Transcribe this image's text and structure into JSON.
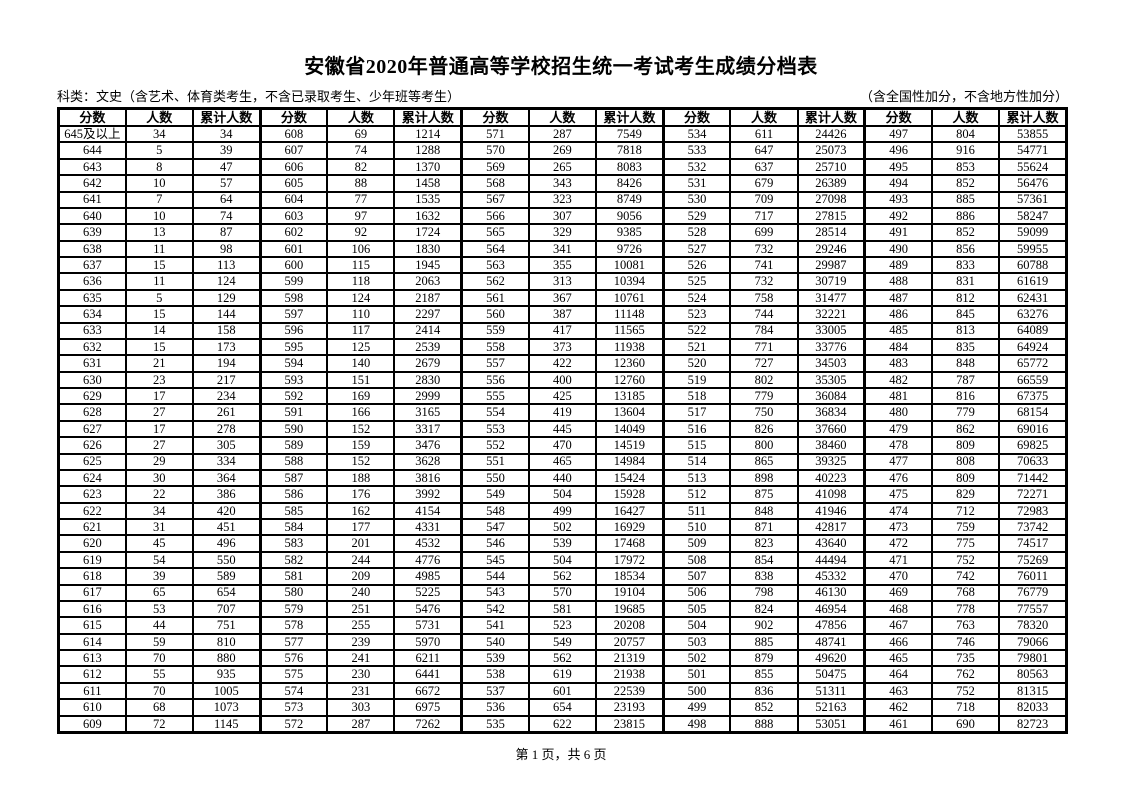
{
  "page": {
    "title": "安徽省2020年普通高等学校招生统一考试考生成绩分档表",
    "subtitle_left": "科类：文史（含艺术、体育类考生，不含已录取考生、少年班等考生）",
    "subtitle_right": "（含全国性加分，不含地方性加分）",
    "footer": "第 1 页，共 6 页"
  },
  "table": {
    "header_labels": [
      "分数",
      "人数",
      "累计人数"
    ],
    "column_kinds": [
      "score",
      "count",
      "cumulative"
    ],
    "groups": [
      {
        "rows": [
          [
            "645及以上",
            34,
            34
          ],
          [
            "644",
            5,
            39
          ],
          [
            "643",
            8,
            47
          ],
          [
            "642",
            10,
            57
          ],
          [
            "641",
            7,
            64
          ],
          [
            "640",
            10,
            74
          ],
          [
            "639",
            13,
            87
          ],
          [
            "638",
            11,
            98
          ],
          [
            "637",
            15,
            113
          ],
          [
            "636",
            11,
            124
          ],
          [
            "635",
            5,
            129
          ],
          [
            "634",
            15,
            144
          ],
          [
            "633",
            14,
            158
          ],
          [
            "632",
            15,
            173
          ],
          [
            "631",
            21,
            194
          ],
          [
            "630",
            23,
            217
          ],
          [
            "629",
            17,
            234
          ],
          [
            "628",
            27,
            261
          ],
          [
            "627",
            17,
            278
          ],
          [
            "626",
            27,
            305
          ],
          [
            "625",
            29,
            334
          ],
          [
            "624",
            30,
            364
          ],
          [
            "623",
            22,
            386
          ],
          [
            "622",
            34,
            420
          ],
          [
            "621",
            31,
            451
          ],
          [
            "620",
            45,
            496
          ],
          [
            "619",
            54,
            550
          ],
          [
            "618",
            39,
            589
          ],
          [
            "617",
            65,
            654
          ],
          [
            "616",
            53,
            707
          ],
          [
            "615",
            44,
            751
          ],
          [
            "614",
            59,
            810
          ],
          [
            "613",
            70,
            880
          ],
          [
            "612",
            55,
            935
          ],
          [
            "611",
            70,
            1005
          ],
          [
            "610",
            68,
            1073
          ],
          [
            "609",
            72,
            1145
          ]
        ]
      },
      {
        "rows": [
          [
            "608",
            69,
            1214
          ],
          [
            "607",
            74,
            1288
          ],
          [
            "606",
            82,
            1370
          ],
          [
            "605",
            88,
            1458
          ],
          [
            "604",
            77,
            1535
          ],
          [
            "603",
            97,
            1632
          ],
          [
            "602",
            92,
            1724
          ],
          [
            "601",
            106,
            1830
          ],
          [
            "600",
            115,
            1945
          ],
          [
            "599",
            118,
            2063
          ],
          [
            "598",
            124,
            2187
          ],
          [
            "597",
            110,
            2297
          ],
          [
            "596",
            117,
            2414
          ],
          [
            "595",
            125,
            2539
          ],
          [
            "594",
            140,
            2679
          ],
          [
            "593",
            151,
            2830
          ],
          [
            "592",
            169,
            2999
          ],
          [
            "591",
            166,
            3165
          ],
          [
            "590",
            152,
            3317
          ],
          [
            "589",
            159,
            3476
          ],
          [
            "588",
            152,
            3628
          ],
          [
            "587",
            188,
            3816
          ],
          [
            "586",
            176,
            3992
          ],
          [
            "585",
            162,
            4154
          ],
          [
            "584",
            177,
            4331
          ],
          [
            "583",
            201,
            4532
          ],
          [
            "582",
            244,
            4776
          ],
          [
            "581",
            209,
            4985
          ],
          [
            "580",
            240,
            5225
          ],
          [
            "579",
            251,
            5476
          ],
          [
            "578",
            255,
            5731
          ],
          [
            "577",
            239,
            5970
          ],
          [
            "576",
            241,
            6211
          ],
          [
            "575",
            230,
            6441
          ],
          [
            "574",
            231,
            6672
          ],
          [
            "573",
            303,
            6975
          ],
          [
            "572",
            287,
            7262
          ]
        ]
      },
      {
        "rows": [
          [
            "571",
            287,
            7549
          ],
          [
            "570",
            269,
            7818
          ],
          [
            "569",
            265,
            8083
          ],
          [
            "568",
            343,
            8426
          ],
          [
            "567",
            323,
            8749
          ],
          [
            "566",
            307,
            9056
          ],
          [
            "565",
            329,
            9385
          ],
          [
            "564",
            341,
            9726
          ],
          [
            "563",
            355,
            10081
          ],
          [
            "562",
            313,
            10394
          ],
          [
            "561",
            367,
            10761
          ],
          [
            "560",
            387,
            11148
          ],
          [
            "559",
            417,
            11565
          ],
          [
            "558",
            373,
            11938
          ],
          [
            "557",
            422,
            12360
          ],
          [
            "556",
            400,
            12760
          ],
          [
            "555",
            425,
            13185
          ],
          [
            "554",
            419,
            13604
          ],
          [
            "553",
            445,
            14049
          ],
          [
            "552",
            470,
            14519
          ],
          [
            "551",
            465,
            14984
          ],
          [
            "550",
            440,
            15424
          ],
          [
            "549",
            504,
            15928
          ],
          [
            "548",
            499,
            16427
          ],
          [
            "547",
            502,
            16929
          ],
          [
            "546",
            539,
            17468
          ],
          [
            "545",
            504,
            17972
          ],
          [
            "544",
            562,
            18534
          ],
          [
            "543",
            570,
            19104
          ],
          [
            "542",
            581,
            19685
          ],
          [
            "541",
            523,
            20208
          ],
          [
            "540",
            549,
            20757
          ],
          [
            "539",
            562,
            21319
          ],
          [
            "538",
            619,
            21938
          ],
          [
            "537",
            601,
            22539
          ],
          [
            "536",
            654,
            23193
          ],
          [
            "535",
            622,
            23815
          ]
        ]
      },
      {
        "rows": [
          [
            "534",
            611,
            24426
          ],
          [
            "533",
            647,
            25073
          ],
          [
            "532",
            637,
            25710
          ],
          [
            "531",
            679,
            26389
          ],
          [
            "530",
            709,
            27098
          ],
          [
            "529",
            717,
            27815
          ],
          [
            "528",
            699,
            28514
          ],
          [
            "527",
            732,
            29246
          ],
          [
            "526",
            741,
            29987
          ],
          [
            "525",
            732,
            30719
          ],
          [
            "524",
            758,
            31477
          ],
          [
            "523",
            744,
            32221
          ],
          [
            "522",
            784,
            33005
          ],
          [
            "521",
            771,
            33776
          ],
          [
            "520",
            727,
            34503
          ],
          [
            "519",
            802,
            35305
          ],
          [
            "518",
            779,
            36084
          ],
          [
            "517",
            750,
            36834
          ],
          [
            "516",
            826,
            37660
          ],
          [
            "515",
            800,
            38460
          ],
          [
            "514",
            865,
            39325
          ],
          [
            "513",
            898,
            40223
          ],
          [
            "512",
            875,
            41098
          ],
          [
            "511",
            848,
            41946
          ],
          [
            "510",
            871,
            42817
          ],
          [
            "509",
            823,
            43640
          ],
          [
            "508",
            854,
            44494
          ],
          [
            "507",
            838,
            45332
          ],
          [
            "506",
            798,
            46130
          ],
          [
            "505",
            824,
            46954
          ],
          [
            "504",
            902,
            47856
          ],
          [
            "503",
            885,
            48741
          ],
          [
            "502",
            879,
            49620
          ],
          [
            "501",
            855,
            50475
          ],
          [
            "500",
            836,
            51311
          ],
          [
            "499",
            852,
            52163
          ],
          [
            "498",
            888,
            53051
          ]
        ]
      },
      {
        "rows": [
          [
            "497",
            804,
            53855
          ],
          [
            "496",
            916,
            54771
          ],
          [
            "495",
            853,
            55624
          ],
          [
            "494",
            852,
            56476
          ],
          [
            "493",
            885,
            57361
          ],
          [
            "492",
            886,
            58247
          ],
          [
            "491",
            852,
            59099
          ],
          [
            "490",
            856,
            59955
          ],
          [
            "489",
            833,
            60788
          ],
          [
            "488",
            831,
            61619
          ],
          [
            "487",
            812,
            62431
          ],
          [
            "486",
            845,
            63276
          ],
          [
            "485",
            813,
            64089
          ],
          [
            "484",
            835,
            64924
          ],
          [
            "483",
            848,
            65772
          ],
          [
            "482",
            787,
            66559
          ],
          [
            "481",
            816,
            67375
          ],
          [
            "480",
            779,
            68154
          ],
          [
            "479",
            862,
            69016
          ],
          [
            "478",
            809,
            69825
          ],
          [
            "477",
            808,
            70633
          ],
          [
            "476",
            809,
            71442
          ],
          [
            "475",
            829,
            72271
          ],
          [
            "474",
            712,
            72983
          ],
          [
            "473",
            759,
            73742
          ],
          [
            "472",
            775,
            74517
          ],
          [
            "471",
            752,
            75269
          ],
          [
            "470",
            742,
            76011
          ],
          [
            "469",
            768,
            76779
          ],
          [
            "468",
            778,
            77557
          ],
          [
            "467",
            763,
            78320
          ],
          [
            "466",
            746,
            79066
          ],
          [
            "465",
            735,
            79801
          ],
          [
            "464",
            762,
            80563
          ],
          [
            "463",
            752,
            81315
          ],
          [
            "462",
            718,
            82033
          ],
          [
            "461",
            690,
            82723
          ]
        ]
      }
    ]
  }
}
